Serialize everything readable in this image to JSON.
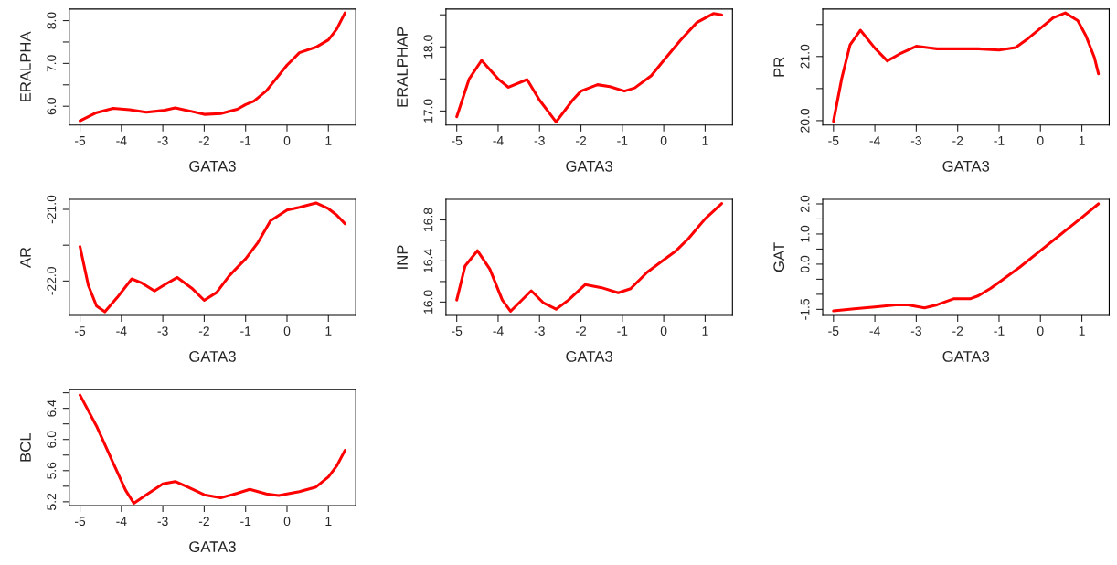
{
  "chart_data": [
    {
      "type": "line",
      "xlabel": "GATA3",
      "ylabel": "ERALPHA",
      "xlim": [
        -5.26,
        1.66
      ],
      "ylim": [
        5.56,
        8.27
      ],
      "xticks": [
        -5,
        -4,
        -3,
        -2,
        -1,
        0,
        1
      ],
      "yticks": [
        {
          "value": 6,
          "label": "6.0"
        },
        {
          "value": 6.5,
          "label": null
        },
        {
          "value": 7,
          "label": "7.0"
        },
        {
          "value": 7.5,
          "label": null
        },
        {
          "value": 8,
          "label": "8.0"
        }
      ],
      "x": [
        -5,
        -4.6,
        -4.2,
        -3.8,
        -3.4,
        -3,
        -2.7,
        -2.4,
        -2,
        -1.6,
        -1.2,
        -1,
        -0.8,
        -0.5,
        0,
        0.3,
        0.7,
        1,
        1.2,
        1.4
      ],
      "series": [
        {
          "color": "#ff0000",
          "values": [
            5.66,
            5.85,
            5.95,
            5.92,
            5.86,
            5.9,
            5.96,
            5.9,
            5.81,
            5.83,
            5.93,
            6.04,
            6.12,
            6.36,
            6.96,
            7.25,
            7.38,
            7.55,
            7.8,
            8.18
          ]
        }
      ]
    },
    {
      "type": "line",
      "xlabel": "GATA3",
      "ylabel": "ERALPHAP",
      "xlim": [
        -5.26,
        1.66
      ],
      "ylim": [
        16.78,
        18.59
      ],
      "xticks": [
        -5,
        -4,
        -3,
        -2,
        -1,
        0,
        1
      ],
      "yticks": [
        {
          "value": 17,
          "label": "17.0"
        },
        {
          "value": 17.5,
          "label": null
        },
        {
          "value": 18,
          "label": "18.0"
        },
        {
          "value": 18.5,
          "label": null
        }
      ],
      "x": [
        -5,
        -4.7,
        -4.4,
        -4,
        -3.75,
        -3.3,
        -3,
        -2.6,
        -2.2,
        -2,
        -1.6,
        -1.3,
        -0.95,
        -0.7,
        -0.3,
        0,
        0.4,
        0.8,
        1.2,
        1.4
      ],
      "series": [
        {
          "color": "#ff0000",
          "values": [
            16.91,
            17.5,
            17.79,
            17.5,
            17.37,
            17.49,
            17.17,
            16.83,
            17.17,
            17.31,
            17.41,
            17.38,
            17.31,
            17.36,
            17.55,
            17.79,
            18.1,
            18.38,
            18.52,
            18.5
          ]
        }
      ]
    },
    {
      "type": "line",
      "xlabel": "GATA3",
      "ylabel": "PR",
      "xlim": [
        -5.26,
        1.66
      ],
      "ylim": [
        19.93,
        21.74
      ],
      "xticks": [
        -5,
        -4,
        -3,
        -2,
        -1,
        0,
        1
      ],
      "yticks": [
        {
          "value": 20,
          "label": "20.0"
        },
        {
          "value": 20.5,
          "label": null
        },
        {
          "value": 21,
          "label": "21.0"
        },
        {
          "value": 21.5,
          "label": null
        }
      ],
      "x": [
        -5,
        -4.8,
        -4.6,
        -4.35,
        -4,
        -3.7,
        -3.4,
        -3,
        -2.5,
        -2,
        -1.5,
        -1,
        -0.6,
        -0.3,
        0,
        0.3,
        0.6,
        0.9,
        1.1,
        1.3,
        1.4
      ],
      "series": [
        {
          "color": "#ff0000",
          "values": [
            19.99,
            20.66,
            21.18,
            21.41,
            21.13,
            20.93,
            21.04,
            21.16,
            21.12,
            21.12,
            21.12,
            21.1,
            21.14,
            21.28,
            21.44,
            21.6,
            21.68,
            21.56,
            21.32,
            20.99,
            20.73
          ]
        }
      ]
    },
    {
      "type": "line",
      "xlabel": "GATA3",
      "ylabel": "AR",
      "xlim": [
        -5.26,
        1.66
      ],
      "ylim": [
        -22.48,
        -20.86
      ],
      "xticks": [
        -5,
        -4,
        -3,
        -2,
        -1,
        0,
        1
      ],
      "yticks": [
        {
          "value": -22,
          "label": "-22.0"
        },
        {
          "value": -21.5,
          "label": null
        },
        {
          "value": -21,
          "label": "-21.0"
        }
      ],
      "x": [
        -5,
        -4.8,
        -4.6,
        -4.4,
        -4.1,
        -3.75,
        -3.5,
        -3.2,
        -2.95,
        -2.65,
        -2.3,
        -2,
        -1.7,
        -1.4,
        -1,
        -0.7,
        -0.4,
        0,
        0.3,
        0.7,
        1,
        1.2,
        1.4
      ],
      "series": [
        {
          "color": "#ff0000",
          "values": [
            -21.52,
            -22.06,
            -22.35,
            -22.43,
            -22.23,
            -21.97,
            -22.03,
            -22.14,
            -22.05,
            -21.95,
            -22.1,
            -22.27,
            -22.16,
            -21.93,
            -21.69,
            -21.46,
            -21.16,
            -21.01,
            -20.97,
            -20.91,
            -20.99,
            -21.08,
            -21.2
          ]
        }
      ]
    },
    {
      "type": "line",
      "xlabel": "GATA3",
      "ylabel": "INP",
      "xlim": [
        -5.26,
        1.66
      ],
      "ylim": [
        15.87,
        17.0
      ],
      "xticks": [
        -5,
        -4,
        -3,
        -2,
        -1,
        0,
        1
      ],
      "yticks": [
        {
          "value": 16,
          "label": "16.0"
        },
        {
          "value": 16.2,
          "label": null
        },
        16.4,
        {
          "value": 16.6,
          "label": null
        },
        16.8
      ],
      "x": [
        -5,
        -4.8,
        -4.5,
        -4.2,
        -3.9,
        -3.7,
        -3.45,
        -3.2,
        -2.9,
        -2.6,
        -2.3,
        -1.9,
        -1.5,
        -1.1,
        -0.8,
        -0.4,
        0,
        0.3,
        0.6,
        1,
        1.4
      ],
      "series": [
        {
          "color": "#ff0000",
          "values": [
            16.02,
            16.35,
            16.5,
            16.32,
            16.02,
            15.91,
            16.01,
            16.11,
            15.99,
            15.93,
            16.02,
            16.17,
            16.14,
            16.09,
            16.13,
            16.29,
            16.41,
            16.5,
            16.62,
            16.81,
            16.96
          ]
        }
      ]
    },
    {
      "type": "line",
      "xlabel": "GATA3",
      "ylabel": "GAT",
      "xlim": [
        -5.26,
        1.66
      ],
      "ylim": [
        -1.7,
        2.15
      ],
      "xticks": [
        -5,
        -4,
        -3,
        -2,
        -1,
        0,
        1
      ],
      "yticks": [
        -1.5,
        {
          "value": -1,
          "label": null
        },
        {
          "value": -0.5,
          "label": null
        },
        {
          "value": 0,
          "label": "0.0"
        },
        {
          "value": 0.5,
          "label": null
        },
        {
          "value": 1,
          "label": "1.0"
        },
        {
          "value": 1.5,
          "label": null
        },
        {
          "value": 2,
          "label": "2.0"
        }
      ],
      "x": [
        -5,
        -4.5,
        -4,
        -3.5,
        -3.2,
        -2.8,
        -2.5,
        -2.1,
        -1.7,
        -1.5,
        -1.2,
        -1,
        -0.5,
        0,
        0.5,
        1,
        1.4
      ],
      "series": [
        {
          "color": "#ff0000",
          "values": [
            -1.55,
            -1.48,
            -1.42,
            -1.35,
            -1.35,
            -1.45,
            -1.35,
            -1.15,
            -1.15,
            -1.05,
            -0.8,
            -0.6,
            -0.1,
            0.45,
            1.0,
            1.55,
            2.0
          ]
        }
      ]
    },
    {
      "type": "line",
      "xlabel": "GATA3",
      "ylabel": "BCL",
      "xlim": [
        -5.26,
        1.66
      ],
      "ylim": [
        5.15,
        6.64
      ],
      "xticks": [
        -5,
        -4,
        -3,
        -2,
        -1,
        0,
        1
      ],
      "yticks": [
        5.2,
        {
          "value": 5.4,
          "label": null
        },
        5.6,
        {
          "value": 5.8,
          "label": null
        },
        {
          "value": 6,
          "label": "6.0"
        },
        {
          "value": 6.2,
          "label": null
        },
        6.4,
        {
          "value": 6.6,
          "label": null
        }
      ],
      "x": [
        -5,
        -4.6,
        -4.2,
        -3.9,
        -3.7,
        -3.4,
        -3,
        -2.7,
        -2.4,
        -2,
        -1.6,
        -1.2,
        -0.9,
        -0.5,
        -0.2,
        0,
        0.3,
        0.7,
        1,
        1.2,
        1.4
      ],
      "series": [
        {
          "color": "#ff0000",
          "values": [
            6.57,
            6.17,
            5.7,
            5.35,
            5.18,
            5.29,
            5.43,
            5.46,
            5.39,
            5.29,
            5.25,
            5.31,
            5.36,
            5.3,
            5.28,
            5.3,
            5.33,
            5.39,
            5.52,
            5.66,
            5.86
          ]
        }
      ]
    }
  ]
}
